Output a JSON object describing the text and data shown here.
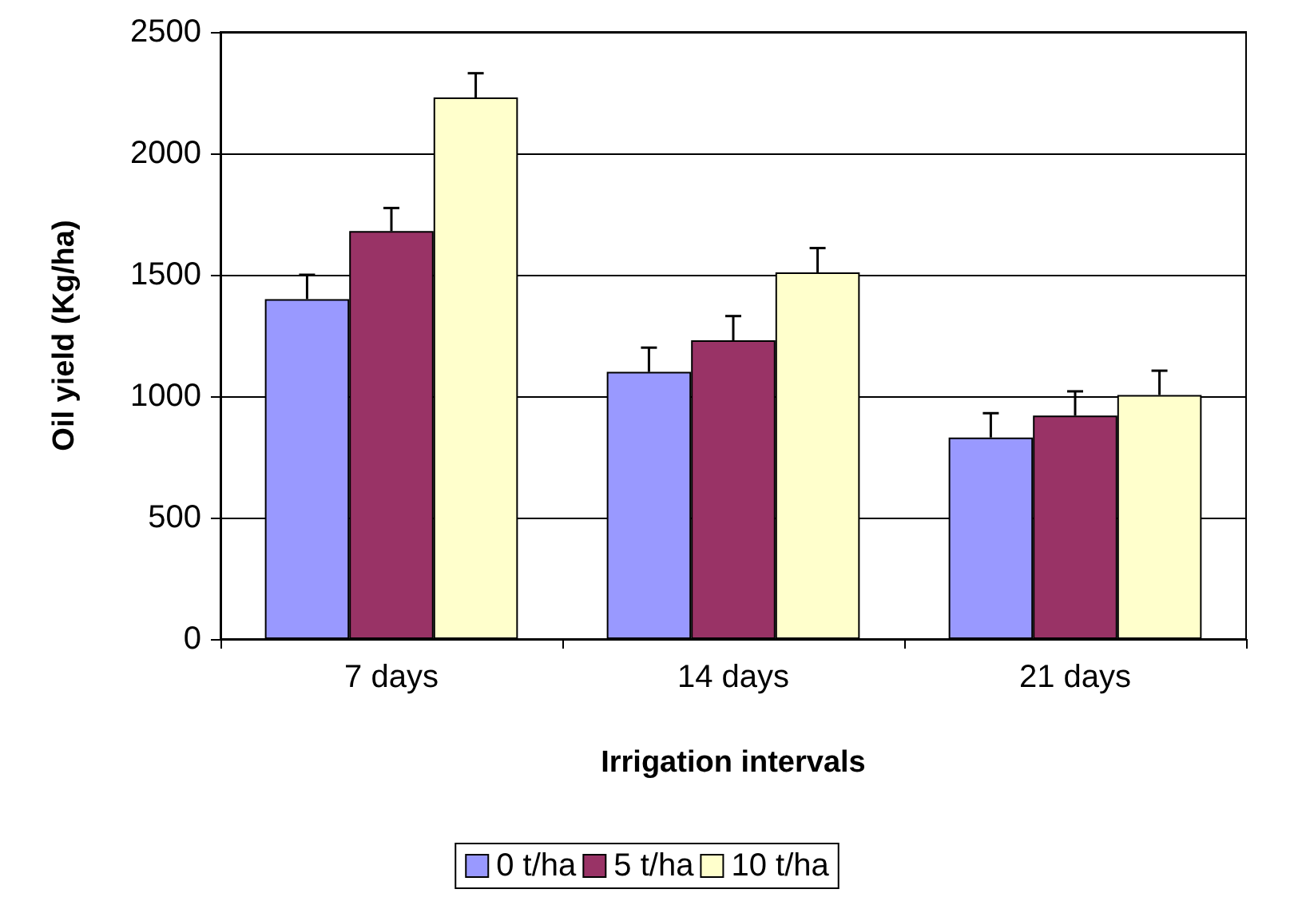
{
  "chart_data": {
    "type": "bar",
    "xlabel": "Irrigation intervals",
    "ylabel": "Oil yield (Kg/ha)",
    "categories": [
      "7 days",
      "14 days",
      "21 days"
    ],
    "series": [
      {
        "name": "0 t/ha",
        "color": "#9999ff",
        "values": [
          1400,
          1100,
          830
        ],
        "errors": [
          [
            1400,
            1500
          ],
          [
            1100,
            1200
          ],
          [
            830,
            930
          ]
        ]
      },
      {
        "name": "5 t/ha",
        "color": "#993366",
        "values": [
          1680,
          1230,
          920
        ],
        "errors": [
          [
            1680,
            1775
          ],
          [
            1230,
            1330
          ],
          [
            920,
            1020
          ]
        ]
      },
      {
        "name": "10 t/ha",
        "color": "#ffffcc",
        "values": [
          2230,
          1510,
          1005
        ],
        "errors": [
          [
            2230,
            2330
          ],
          [
            1510,
            1610
          ],
          [
            1005,
            1105
          ]
        ]
      }
    ],
    "ylim": [
      0,
      2500
    ],
    "yticks": [
      0,
      500,
      1000,
      1500,
      2000,
      2500
    ],
    "grid": "y",
    "legend": "bottom"
  }
}
